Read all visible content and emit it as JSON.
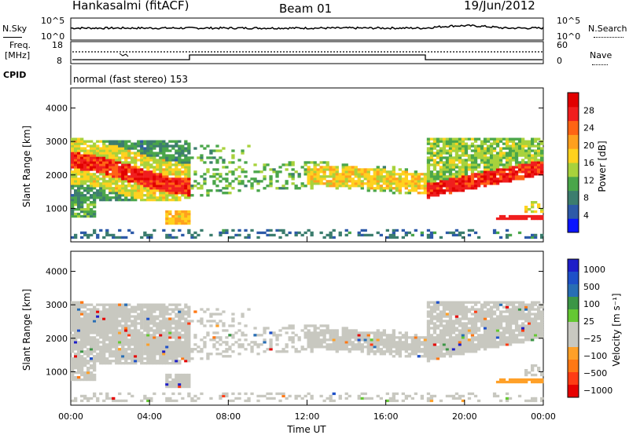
{
  "header": {
    "station": "Hankasalmi (fitACF)",
    "beam": "Beam 01",
    "date": "19/Jun/2012"
  },
  "top_panels": {
    "nsky_label": "N.Sky",
    "nsky_ticks": [
      "10^5",
      "10^0"
    ],
    "nsearch_label": "N.Search",
    "nsearch_ticks": [
      "10^5",
      "10^0"
    ],
    "freq_label_1": "Freq.",
    "freq_label_2": "[MHz]",
    "freq_ticks": [
      "18",
      "8"
    ],
    "nave_label": "Nave",
    "nave_ticks": [
      "60",
      "0"
    ],
    "cpid_label": "CPID",
    "cpid_text": "normal (fast stereo) 153"
  },
  "colors": {
    "power": [
      "#0a14ff",
      "#2d5aa8",
      "#3c7d6e",
      "#4aa64a",
      "#a8d23c",
      "#ffd21e",
      "#ffa01e",
      "#ff6414",
      "#f01e1e",
      "#e10000"
    ],
    "velocity": [
      "#1e1ec8",
      "#1e50c8",
      "#286eb4",
      "#3c9646",
      "#64c832",
      "#c8c8c0",
      "#c8c8c0",
      "#ffa028",
      "#ff7814",
      "#ff3c14",
      "#e60000"
    ]
  },
  "chart_data": [
    {
      "type": "heatmap",
      "name": "power",
      "ylabel": "Slant Range [km]",
      "yticks": [
        "1000",
        "2000",
        "3000",
        "4000"
      ],
      "ylim": [
        0,
        4600
      ],
      "xlim": [
        0,
        24
      ],
      "colorbar_label": "Power [dB]",
      "colorbar_ticks": [
        "4",
        "8",
        "12",
        "16",
        "20",
        "24",
        "28"
      ],
      "colorbar_range": [
        0,
        32
      ]
    },
    {
      "type": "heatmap",
      "name": "velocity",
      "xlabel": "Time UT",
      "xticks": [
        "00:00",
        "04:00",
        "08:00",
        "12:00",
        "16:00",
        "20:00",
        "00:00"
      ],
      "ylabel": "Slant Range [km]",
      "yticks": [
        "1000",
        "2000",
        "3000",
        "4000"
      ],
      "ylim": [
        0,
        4600
      ],
      "xlim": [
        0,
        24
      ],
      "colorbar_label": "Velocity [m s⁻¹]",
      "colorbar_ticks": [
        "1000",
        "500",
        "100",
        "25",
        "−25",
        "−100",
        "−500",
        "−1000"
      ]
    }
  ]
}
